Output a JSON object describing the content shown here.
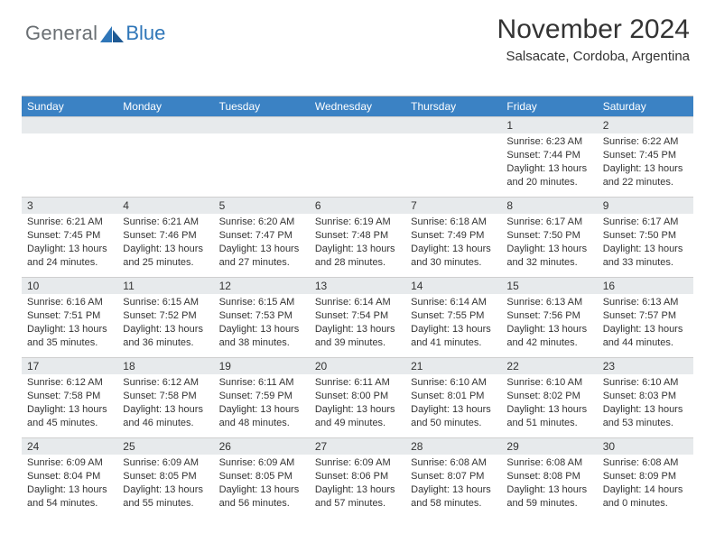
{
  "brand": {
    "text1": "General",
    "text2": "Blue"
  },
  "header": {
    "title": "November 2024",
    "subtitle": "Salsacate, Cordoba, Argentina"
  },
  "colors": {
    "header_blue": "#3b82c4",
    "daynum_gray": "#e7eaec",
    "rule_gray": "#cfcfcf",
    "text": "#333333",
    "logo_gray": "#6a6f73",
    "logo_blue": "#2f76b8",
    "background": "#ffffff"
  },
  "typography": {
    "title_fontsize": 30,
    "subtitle_fontsize": 15,
    "dayhead_fontsize": 12,
    "daynum_fontsize": 12,
    "body_fontsize": 11,
    "font_family": "Arial"
  },
  "day_labels": [
    "Sunday",
    "Monday",
    "Tuesday",
    "Wednesday",
    "Thursday",
    "Friday",
    "Saturday"
  ],
  "weeks": [
    [
      null,
      null,
      null,
      null,
      null,
      {
        "n": "1",
        "sr": "Sunrise: 6:23 AM",
        "ss": "Sunset: 7:44 PM",
        "dl1": "Daylight: 13 hours",
        "dl2": "and 20 minutes."
      },
      {
        "n": "2",
        "sr": "Sunrise: 6:22 AM",
        "ss": "Sunset: 7:45 PM",
        "dl1": "Daylight: 13 hours",
        "dl2": "and 22 minutes."
      }
    ],
    [
      {
        "n": "3",
        "sr": "Sunrise: 6:21 AM",
        "ss": "Sunset: 7:45 PM",
        "dl1": "Daylight: 13 hours",
        "dl2": "and 24 minutes."
      },
      {
        "n": "4",
        "sr": "Sunrise: 6:21 AM",
        "ss": "Sunset: 7:46 PM",
        "dl1": "Daylight: 13 hours",
        "dl2": "and 25 minutes."
      },
      {
        "n": "5",
        "sr": "Sunrise: 6:20 AM",
        "ss": "Sunset: 7:47 PM",
        "dl1": "Daylight: 13 hours",
        "dl2": "and 27 minutes."
      },
      {
        "n": "6",
        "sr": "Sunrise: 6:19 AM",
        "ss": "Sunset: 7:48 PM",
        "dl1": "Daylight: 13 hours",
        "dl2": "and 28 minutes."
      },
      {
        "n": "7",
        "sr": "Sunrise: 6:18 AM",
        "ss": "Sunset: 7:49 PM",
        "dl1": "Daylight: 13 hours",
        "dl2": "and 30 minutes."
      },
      {
        "n": "8",
        "sr": "Sunrise: 6:17 AM",
        "ss": "Sunset: 7:50 PM",
        "dl1": "Daylight: 13 hours",
        "dl2": "and 32 minutes."
      },
      {
        "n": "9",
        "sr": "Sunrise: 6:17 AM",
        "ss": "Sunset: 7:50 PM",
        "dl1": "Daylight: 13 hours",
        "dl2": "and 33 minutes."
      }
    ],
    [
      {
        "n": "10",
        "sr": "Sunrise: 6:16 AM",
        "ss": "Sunset: 7:51 PM",
        "dl1": "Daylight: 13 hours",
        "dl2": "and 35 minutes."
      },
      {
        "n": "11",
        "sr": "Sunrise: 6:15 AM",
        "ss": "Sunset: 7:52 PM",
        "dl1": "Daylight: 13 hours",
        "dl2": "and 36 minutes."
      },
      {
        "n": "12",
        "sr": "Sunrise: 6:15 AM",
        "ss": "Sunset: 7:53 PM",
        "dl1": "Daylight: 13 hours",
        "dl2": "and 38 minutes."
      },
      {
        "n": "13",
        "sr": "Sunrise: 6:14 AM",
        "ss": "Sunset: 7:54 PM",
        "dl1": "Daylight: 13 hours",
        "dl2": "and 39 minutes."
      },
      {
        "n": "14",
        "sr": "Sunrise: 6:14 AM",
        "ss": "Sunset: 7:55 PM",
        "dl1": "Daylight: 13 hours",
        "dl2": "and 41 minutes."
      },
      {
        "n": "15",
        "sr": "Sunrise: 6:13 AM",
        "ss": "Sunset: 7:56 PM",
        "dl1": "Daylight: 13 hours",
        "dl2": "and 42 minutes."
      },
      {
        "n": "16",
        "sr": "Sunrise: 6:13 AM",
        "ss": "Sunset: 7:57 PM",
        "dl1": "Daylight: 13 hours",
        "dl2": "and 44 minutes."
      }
    ],
    [
      {
        "n": "17",
        "sr": "Sunrise: 6:12 AM",
        "ss": "Sunset: 7:58 PM",
        "dl1": "Daylight: 13 hours",
        "dl2": "and 45 minutes."
      },
      {
        "n": "18",
        "sr": "Sunrise: 6:12 AM",
        "ss": "Sunset: 7:58 PM",
        "dl1": "Daylight: 13 hours",
        "dl2": "and 46 minutes."
      },
      {
        "n": "19",
        "sr": "Sunrise: 6:11 AM",
        "ss": "Sunset: 7:59 PM",
        "dl1": "Daylight: 13 hours",
        "dl2": "and 48 minutes."
      },
      {
        "n": "20",
        "sr": "Sunrise: 6:11 AM",
        "ss": "Sunset: 8:00 PM",
        "dl1": "Daylight: 13 hours",
        "dl2": "and 49 minutes."
      },
      {
        "n": "21",
        "sr": "Sunrise: 6:10 AM",
        "ss": "Sunset: 8:01 PM",
        "dl1": "Daylight: 13 hours",
        "dl2": "and 50 minutes."
      },
      {
        "n": "22",
        "sr": "Sunrise: 6:10 AM",
        "ss": "Sunset: 8:02 PM",
        "dl1": "Daylight: 13 hours",
        "dl2": "and 51 minutes."
      },
      {
        "n": "23",
        "sr": "Sunrise: 6:10 AM",
        "ss": "Sunset: 8:03 PM",
        "dl1": "Daylight: 13 hours",
        "dl2": "and 53 minutes."
      }
    ],
    [
      {
        "n": "24",
        "sr": "Sunrise: 6:09 AM",
        "ss": "Sunset: 8:04 PM",
        "dl1": "Daylight: 13 hours",
        "dl2": "and 54 minutes."
      },
      {
        "n": "25",
        "sr": "Sunrise: 6:09 AM",
        "ss": "Sunset: 8:05 PM",
        "dl1": "Daylight: 13 hours",
        "dl2": "and 55 minutes."
      },
      {
        "n": "26",
        "sr": "Sunrise: 6:09 AM",
        "ss": "Sunset: 8:05 PM",
        "dl1": "Daylight: 13 hours",
        "dl2": "and 56 minutes."
      },
      {
        "n": "27",
        "sr": "Sunrise: 6:09 AM",
        "ss": "Sunset: 8:06 PM",
        "dl1": "Daylight: 13 hours",
        "dl2": "and 57 minutes."
      },
      {
        "n": "28",
        "sr": "Sunrise: 6:08 AM",
        "ss": "Sunset: 8:07 PM",
        "dl1": "Daylight: 13 hours",
        "dl2": "and 58 minutes."
      },
      {
        "n": "29",
        "sr": "Sunrise: 6:08 AM",
        "ss": "Sunset: 8:08 PM",
        "dl1": "Daylight: 13 hours",
        "dl2": "and 59 minutes."
      },
      {
        "n": "30",
        "sr": "Sunrise: 6:08 AM",
        "ss": "Sunset: 8:09 PM",
        "dl1": "Daylight: 14 hours",
        "dl2": "and 0 minutes."
      }
    ]
  ]
}
